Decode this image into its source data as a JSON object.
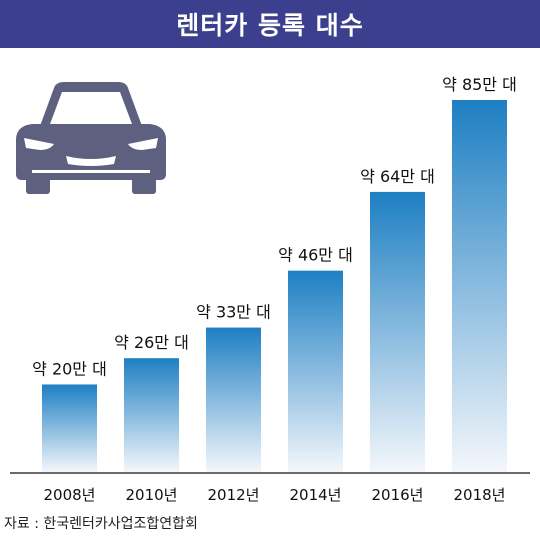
{
  "title": "렌터카 등록 대수",
  "source": "자료 : 한국렌터카사업조합연합회",
  "colors": {
    "title_bg": "#3b3f8e",
    "bar_top": "#1e7fc3",
    "bar_bottom": "#f4f7fb",
    "car": "#5e6080"
  },
  "icons": {
    "car": "car-icon"
  },
  "chart_data": {
    "type": "bar",
    "categories": [
      "2008년",
      "2010년",
      "2012년",
      "2014년",
      "2016년",
      "2018년"
    ],
    "values": [
      20,
      26,
      33,
      46,
      64,
      85
    ],
    "data_labels": [
      "약 20만 대",
      "약 26만 대",
      "약 33만 대",
      "약 46만 대",
      "약 64만 대",
      "약 85만 대"
    ],
    "title": "렌터카 등록 대수",
    "xlabel": "",
    "ylabel": "",
    "ylim": [
      0,
      85
    ],
    "grid": false,
    "legend": "none"
  }
}
